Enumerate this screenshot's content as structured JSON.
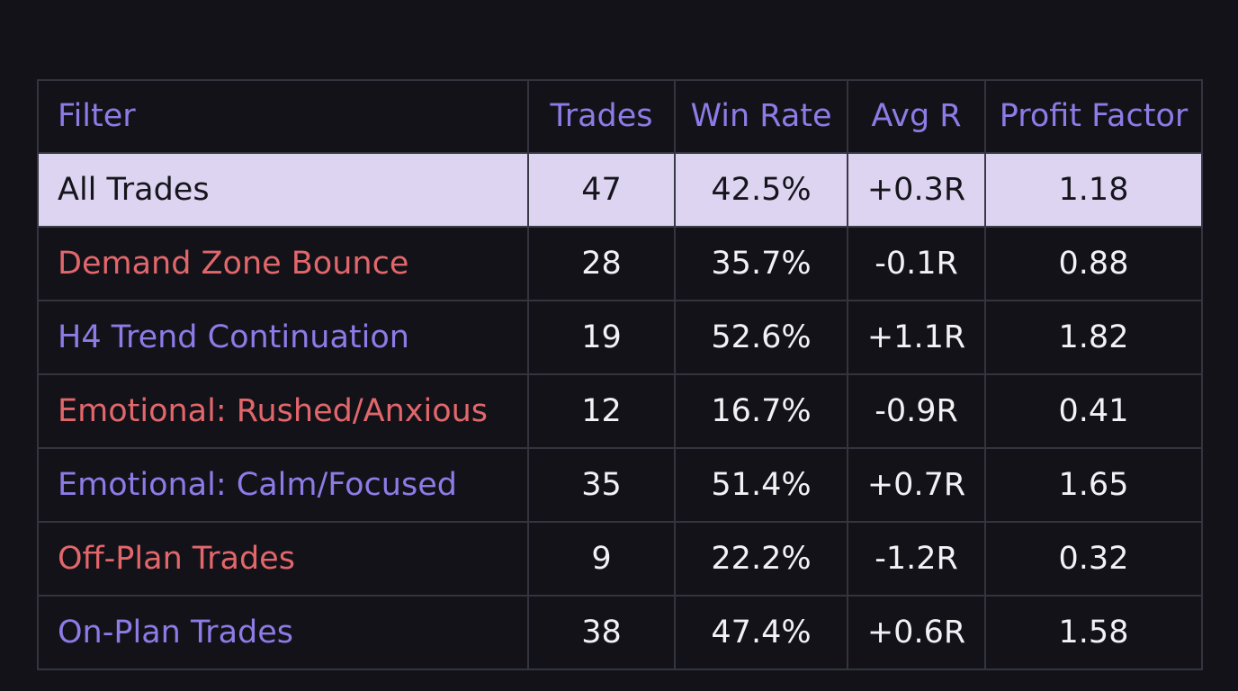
{
  "table": {
    "headers": {
      "filter": "Filter",
      "trades": "Trades",
      "win_rate": "Win Rate",
      "avg_r": "Avg R",
      "profit_factor": "Profit Factor"
    },
    "rows": [
      {
        "filter": "All Trades",
        "trades": "47",
        "win_rate": "42.5%",
        "avg_r": "+0.3R",
        "profit_factor": "1.18",
        "tone": "base",
        "highlighted": true
      },
      {
        "filter": "Demand Zone Bounce",
        "trades": "28",
        "win_rate": "35.7%",
        "avg_r": "-0.1R",
        "profit_factor": "0.88",
        "tone": "negative"
      },
      {
        "filter": "H4 Trend Continuation",
        "trades": "19",
        "win_rate": "52.6%",
        "avg_r": "+1.1R",
        "profit_factor": "1.82",
        "tone": "positive"
      },
      {
        "filter": "Emotional: Rushed/Anxious",
        "trades": "12",
        "win_rate": "16.7%",
        "avg_r": "-0.9R",
        "profit_factor": "0.41",
        "tone": "negative"
      },
      {
        "filter": "Emotional: Calm/Focused",
        "trades": "35",
        "win_rate": "51.4%",
        "avg_r": "+0.7R",
        "profit_factor": "1.65",
        "tone": "positive"
      },
      {
        "filter": "Off-Plan Trades",
        "trades": "9",
        "win_rate": "22.2%",
        "avg_r": "-1.2R",
        "profit_factor": "0.32",
        "tone": "negative"
      },
      {
        "filter": "On-Plan Trades",
        "trades": "38",
        "win_rate": "47.4%",
        "avg_r": "+0.6R",
        "profit_factor": "1.58",
        "tone": "positive"
      }
    ]
  },
  "colors": {
    "background": "#131219",
    "header_text": "#8d7be6",
    "positive": "#8d7be6",
    "negative": "#e2676b",
    "highlight_row": "#ddd4f1",
    "grid": "#34343f"
  }
}
